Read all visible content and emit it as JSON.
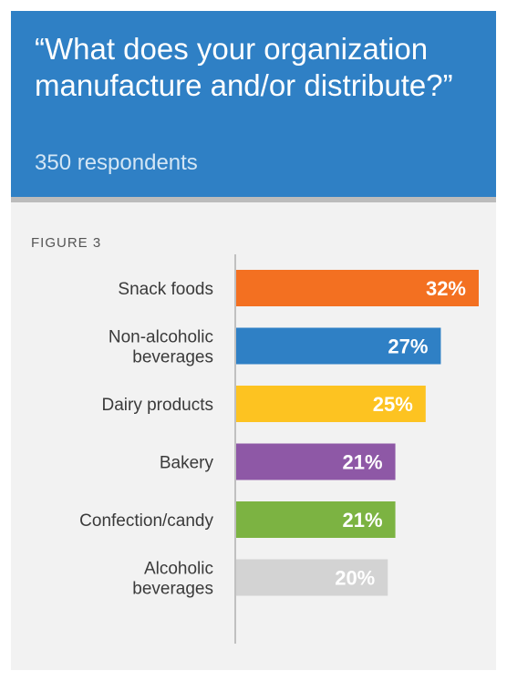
{
  "header": {
    "question": "“What does your organization manufacture and/or distribute?”",
    "respondents": "350 respondents"
  },
  "figure_label": "FIGURE 3",
  "colors": {
    "header_bg": "#2f80c5",
    "axis": "#b0b0b0"
  },
  "chart_data": {
    "type": "bar",
    "orientation": "horizontal",
    "title": "",
    "xlabel": "",
    "ylabel": "",
    "xlim": [
      0,
      32
    ],
    "grid": false,
    "legend": "none",
    "categories": [
      [
        "Snack foods"
      ],
      [
        "Non-alcoholic",
        "beverages"
      ],
      [
        "Dairy products"
      ],
      [
        "Bakery"
      ],
      [
        "Confection/candy"
      ],
      [
        "Alcoholic",
        "beverages"
      ]
    ],
    "values": [
      32,
      27,
      25,
      21,
      21,
      20
    ],
    "value_labels": [
      "32%",
      "27%",
      "25%",
      "21%",
      "21%",
      "20%"
    ],
    "bar_colors": [
      "#f37021",
      "#2f80c5",
      "#fdc321",
      "#8e58a6",
      "#7cb342",
      "#d3d3d3"
    ]
  }
}
